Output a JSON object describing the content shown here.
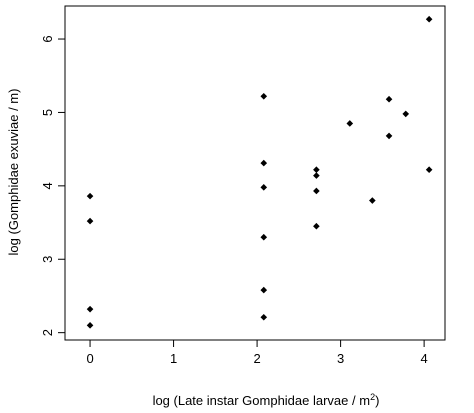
{
  "chart_data": {
    "type": "scatter",
    "title": "",
    "xlabel": "log (Late instar Gomphidae larvae / m",
    "xlabel_sup": "2",
    "xlabel_suffix": ")",
    "ylabel": "log (Gomphidae exuviae / m)",
    "xlim": [
      -0.3,
      4.25
    ],
    "ylim": [
      1.9,
      6.45
    ],
    "xticks": [
      0,
      1,
      2,
      3,
      4
    ],
    "yticks": [
      2,
      3,
      4,
      5,
      6
    ],
    "xtick_labels": [
      "0",
      "1",
      "2",
      "3",
      "4"
    ],
    "ytick_labels": [
      "2",
      "3",
      "4",
      "5",
      "6"
    ],
    "grid": false,
    "legend": "none",
    "point_color": "#000000",
    "points": [
      {
        "x": 0.0,
        "y": 3.86
      },
      {
        "x": 0.0,
        "y": 3.52
      },
      {
        "x": 0.0,
        "y": 2.32
      },
      {
        "x": 0.0,
        "y": 2.1
      },
      {
        "x": 2.08,
        "y": 5.22
      },
      {
        "x": 2.08,
        "y": 4.31
      },
      {
        "x": 2.08,
        "y": 3.98
      },
      {
        "x": 2.08,
        "y": 3.3
      },
      {
        "x": 2.08,
        "y": 2.58
      },
      {
        "x": 2.08,
        "y": 2.21
      },
      {
        "x": 2.71,
        "y": 4.22
      },
      {
        "x": 2.71,
        "y": 4.14
      },
      {
        "x": 2.71,
        "y": 3.93
      },
      {
        "x": 2.71,
        "y": 3.45
      },
      {
        "x": 3.11,
        "y": 4.85
      },
      {
        "x": 3.38,
        "y": 3.8
      },
      {
        "x": 3.58,
        "y": 5.18
      },
      {
        "x": 3.58,
        "y": 4.68
      },
      {
        "x": 3.78,
        "y": 4.98
      },
      {
        "x": 4.06,
        "y": 6.27
      },
      {
        "x": 4.06,
        "y": 4.22
      }
    ]
  }
}
